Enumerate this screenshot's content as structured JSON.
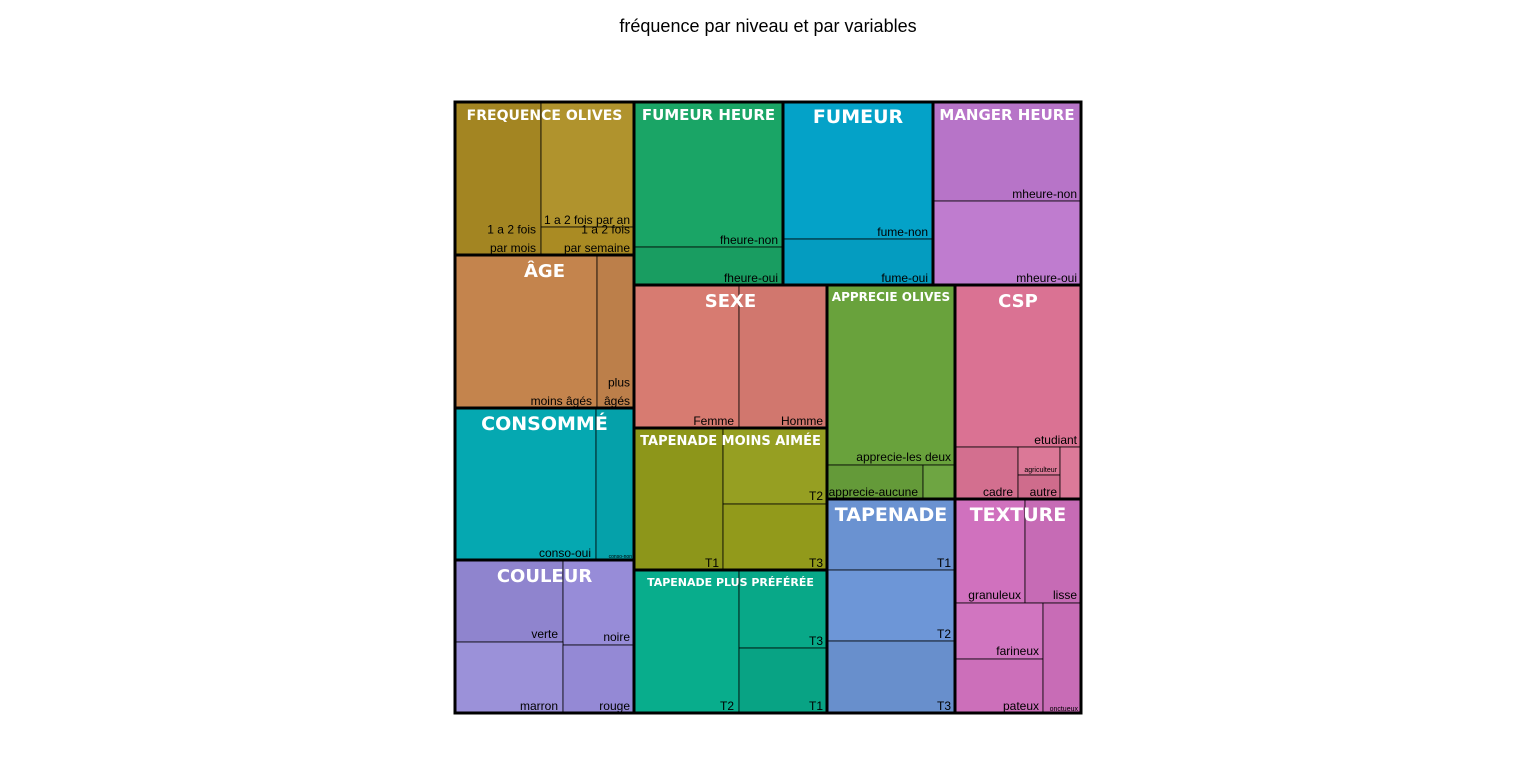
{
  "chart_data": {
    "type": "treemap",
    "title": "fréquence par niveau et par variables",
    "groups": [
      {
        "name": "FREQUENCE OLIVES",
        "color": "#ad8e24",
        "items": [
          {
            "label": "1 a 2 fois par mois",
            "lines": [
              "1 a 2 fois",
              "par mois"
            ]
          },
          {
            "label": "1 a 2 fois par an",
            "lines": [
              "1 a 2 fois par an"
            ]
          },
          {
            "label": "1 a 2 fois par semaine",
            "lines": [
              "1 a 2 fois",
              "par semaine"
            ]
          }
        ]
      },
      {
        "name": "FUMEUR HEURE",
        "color": "#1aa566",
        "items": [
          {
            "label": "fheure-non",
            "lines": [
              "fheure-non"
            ]
          },
          {
            "label": "fheure-oui",
            "lines": [
              "fheure-oui"
            ]
          }
        ]
      },
      {
        "name": "FUMEUR",
        "color": "#04a2c8",
        "items": [
          {
            "label": "fume-non",
            "lines": [
              "fume-non"
            ]
          },
          {
            "label": "fume-oui",
            "lines": [
              "fume-oui"
            ]
          }
        ]
      },
      {
        "name": "MANGER HEURE",
        "color": "#bd78ce",
        "items": [
          {
            "label": "mheure-non",
            "lines": [
              "mheure-non"
            ]
          },
          {
            "label": "mheure-oui",
            "lines": [
              "mheure-oui"
            ]
          }
        ]
      },
      {
        "name": "ÂGE",
        "color": "#c4844d",
        "items": [
          {
            "label": "moins âgés",
            "lines": [
              "moins âgés"
            ]
          },
          {
            "label": "plus âgés",
            "lines": [
              "plus",
              "âgés"
            ]
          }
        ]
      },
      {
        "name": "SEXE",
        "color": "#d77b71",
        "items": [
          {
            "label": "Femme",
            "lines": [
              "Femme"
            ]
          },
          {
            "label": "Homme",
            "lines": [
              "Homme"
            ]
          }
        ]
      },
      {
        "name": "APPRECIE OLIVES",
        "color": "#69a23c",
        "items": [
          {
            "label": "apprecie-les deux",
            "lines": [
              "apprecie-les deux"
            ]
          },
          {
            "label": "apprecie-aucune",
            "lines": [
              "apprecie-aucune"
            ]
          },
          {
            "label": "",
            "lines": []
          }
        ]
      },
      {
        "name": "CSP",
        "color": "#da7293",
        "items": [
          {
            "label": "etudiant",
            "lines": [
              "etudiant"
            ]
          },
          {
            "label": "cadre",
            "lines": [
              "cadre"
            ]
          },
          {
            "label": "agriculteur",
            "lines": [
              "agriculteur"
            ]
          },
          {
            "label": "autre",
            "lines": [
              "autre"
            ]
          },
          {
            "label": "",
            "lines": []
          }
        ]
      },
      {
        "name": "CONSOMMÉ",
        "color": "#05a8b1",
        "items": [
          {
            "label": "conso-oui",
            "lines": [
              "conso-oui"
            ]
          },
          {
            "label": "conso-non",
            "lines": [
              "conso-non"
            ]
          }
        ]
      },
      {
        "name": "TAPENADE MOINS AIMÉE",
        "color": "#939c1b",
        "items": [
          {
            "label": "T1",
            "lines": [
              "T1"
            ]
          },
          {
            "label": "T2",
            "lines": [
              "T2"
            ]
          },
          {
            "label": "T3",
            "lines": [
              "T3"
            ]
          }
        ]
      },
      {
        "name": "TAPENADE",
        "color": "#6d96d7",
        "items": [
          {
            "label": "T1",
            "lines": [
              "T1"
            ]
          },
          {
            "label": "T2",
            "lines": [
              "T2"
            ]
          },
          {
            "label": "T3",
            "lines": [
              "T3"
            ]
          }
        ]
      },
      {
        "name": "TEXTURE",
        "color": "#d071be",
        "items": [
          {
            "label": "granuleux",
            "lines": [
              "granuleux"
            ]
          },
          {
            "label": "lisse",
            "lines": [
              "lisse"
            ]
          },
          {
            "label": "farineux",
            "lines": [
              "farineux"
            ]
          },
          {
            "label": "pateux",
            "lines": [
              "pateux"
            ]
          },
          {
            "label": "onctueux",
            "lines": [
              "onctueux"
            ]
          }
        ]
      },
      {
        "name": "COULEUR",
        "color": "#958ad7",
        "items": [
          {
            "label": "verte",
            "lines": [
              "verte"
            ]
          },
          {
            "label": "noire",
            "lines": [
              "noire"
            ]
          },
          {
            "label": "marron",
            "lines": [
              "marron"
            ]
          },
          {
            "label": "rouge",
            "lines": [
              "rouge"
            ]
          }
        ]
      },
      {
        "name": "TAPENADE PLUS PRÉFÉRÉE",
        "color": "#08ad8c",
        "items": [
          {
            "label": "T2",
            "lines": [
              "T2"
            ]
          },
          {
            "label": "T3",
            "lines": [
              "T3"
            ]
          },
          {
            "label": "T1",
            "lines": [
              "T1"
            ]
          }
        ]
      }
    ]
  }
}
